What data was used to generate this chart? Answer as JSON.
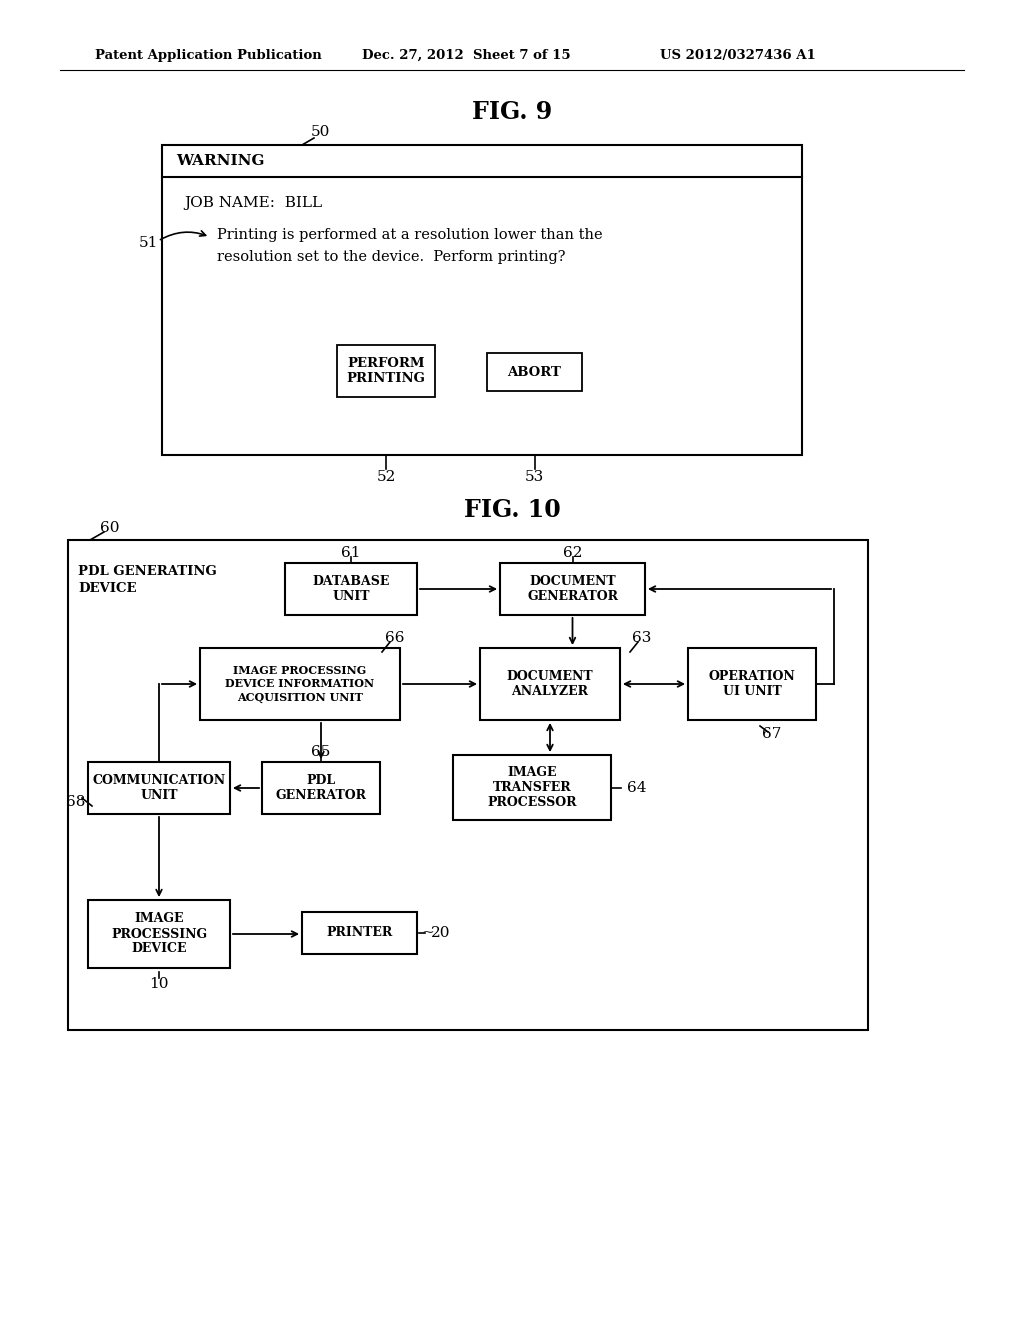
{
  "bg_color": "#ffffff",
  "header_text1": "Patent Application Publication",
  "header_text2": "Dec. 27, 2012  Sheet 7 of 15",
  "header_text3": "US 2012/0327436 A1",
  "fig9_title": "FIG. 9",
  "fig10_title": "FIG. 10",
  "fig9": {
    "label_50": "50",
    "label_51": "51",
    "label_52": "52",
    "label_53": "53",
    "warning_title": "WARNING",
    "job_name": "JOB NAME:  BILL",
    "message_line1": "Printing is performed at a resolution lower than the",
    "message_line2": "resolution set to the device.  Perform printing?",
    "btn1": "PERFORM\nPRINTING",
    "btn2": "ABORT"
  },
  "fig10": {
    "outer_label": "60",
    "outer_title": "PDL GENERATING\nDEVICE",
    "boxes": {
      "db": {
        "label": "61",
        "text": "DATABASE\nUNIT"
      },
      "docgen": {
        "label": "62",
        "text": "DOCUMENT\nGENERATOR"
      },
      "imgproc": {
        "label": "66",
        "text": "IMAGE PROCESSING\nDEVICE INFORMATION\nACQUISITION UNIT"
      },
      "docanalyzer": {
        "label": "63",
        "text": "DOCUMENT\nANALYZER"
      },
      "opui": {
        "label": "67",
        "text": "OPERATION\nUI UNIT"
      },
      "comm": {
        "label": "68",
        "text": "COMMUNICATION\nUNIT"
      },
      "pdlgen": {
        "label": "65",
        "text": "PDL\nGENERATOR"
      },
      "imgxfer": {
        "label": "64",
        "text": "IMAGE\nTRANSFER\nPROCESSOR"
      },
      "imgdev": {
        "label": "10",
        "text": "IMAGE\nPROCESSING\nDEVICE"
      },
      "printer": {
        "label": "20",
        "text": "PRINTER"
      }
    }
  }
}
